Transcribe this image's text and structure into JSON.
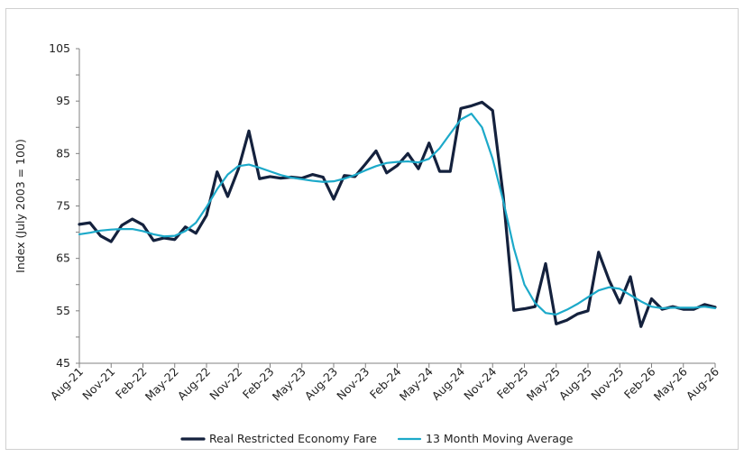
{
  "chart_data": {
    "type": "line",
    "title": "",
    "xlabel": "",
    "ylabel": "Index (July 2003 = 100)",
    "ylim": [
      45,
      105
    ],
    "yticks": [
      45,
      55,
      65,
      75,
      85,
      95,
      105
    ],
    "grid": false,
    "legend_position": "bottom",
    "x_tick_labels": [
      "Aug-21",
      "Nov-21",
      "Feb-22",
      "May-22",
      "Aug-22",
      "Nov-22",
      "Feb-23",
      "May-23",
      "Aug-23",
      "Nov-23",
      "Feb-24",
      "May-24",
      "Aug-24",
      "Nov-24",
      "Feb-25",
      "May-25",
      "Aug-25",
      "Nov-25",
      "Feb-26",
      "May-26",
      "Aug-26"
    ],
    "series": [
      {
        "name": "Real Restricted Economy Fare",
        "color": "#14213d",
        "values": [
          71.5,
          71.8,
          69.3,
          68.2,
          71.3,
          72.5,
          71.4,
          68.4,
          68.9,
          68.6,
          71.0,
          69.8,
          73.2,
          81.5,
          76.8,
          82.0,
          89.3,
          80.2,
          80.6,
          80.3,
          80.5,
          80.3,
          81.0,
          80.5,
          76.3,
          80.8,
          80.6,
          83.0,
          85.5,
          81.3,
          82.7,
          85.0,
          82.1,
          87.0,
          81.6,
          81.6,
          93.6,
          94.1,
          94.8,
          93.2,
          77.0,
          55.1,
          55.4,
          55.8,
          64.0,
          52.5,
          53.2,
          54.4,
          55.0,
          66.2,
          60.8,
          56.5,
          61.5,
          52.0,
          57.3,
          55.3,
          55.8,
          55.3,
          55.3,
          56.2,
          55.7
        ]
      },
      {
        "name": "13 Month Moving Average",
        "color": "#1ca9c9",
        "values": [
          69.6,
          69.9,
          70.3,
          70.5,
          70.6,
          70.6,
          70.2,
          69.6,
          69.2,
          69.3,
          70.2,
          71.8,
          74.8,
          78.2,
          81.0,
          82.6,
          82.9,
          82.3,
          81.6,
          80.9,
          80.4,
          80.1,
          79.8,
          79.6,
          79.7,
          80.2,
          80.9,
          81.8,
          82.6,
          83.2,
          83.4,
          83.5,
          83.3,
          84.0,
          86.0,
          88.8,
          91.5,
          92.6,
          90.0,
          84.0,
          76.0,
          67.0,
          60.0,
          56.5,
          54.6,
          54.3,
          55.2,
          56.3,
          57.6,
          58.9,
          59.5,
          59.2,
          58.0,
          56.8,
          55.8,
          55.5,
          55.6,
          55.6,
          55.6,
          55.8,
          55.5
        ]
      }
    ]
  }
}
